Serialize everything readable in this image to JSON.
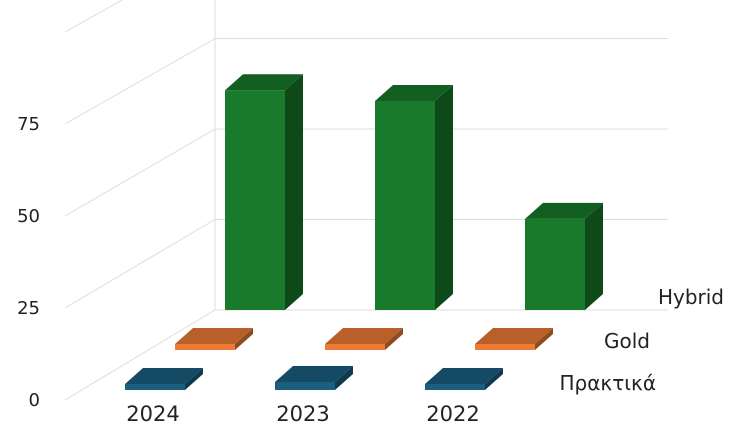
{
  "chart_data": {
    "type": "bar",
    "categories": [
      "2024",
      "2023",
      "2022"
    ],
    "series": [
      {
        "name": "Πρακτικά",
        "values": [
          1,
          3,
          0
        ],
        "color": "#1a5f80"
      },
      {
        "name": "Gold",
        "values": [
          1,
          2,
          1
        ],
        "color": "#ed7b35"
      },
      {
        "name": "Hybrid",
        "values": [
          82,
          78,
          34
        ],
        "color": "#187a2a"
      }
    ],
    "y_ticks": [
      "0",
      "25",
      "50",
      "75"
    ],
    "ylim": [
      0,
      100
    ],
    "title": "",
    "xlabel": "",
    "ylabel": "",
    "grid": true,
    "legend": "none"
  }
}
